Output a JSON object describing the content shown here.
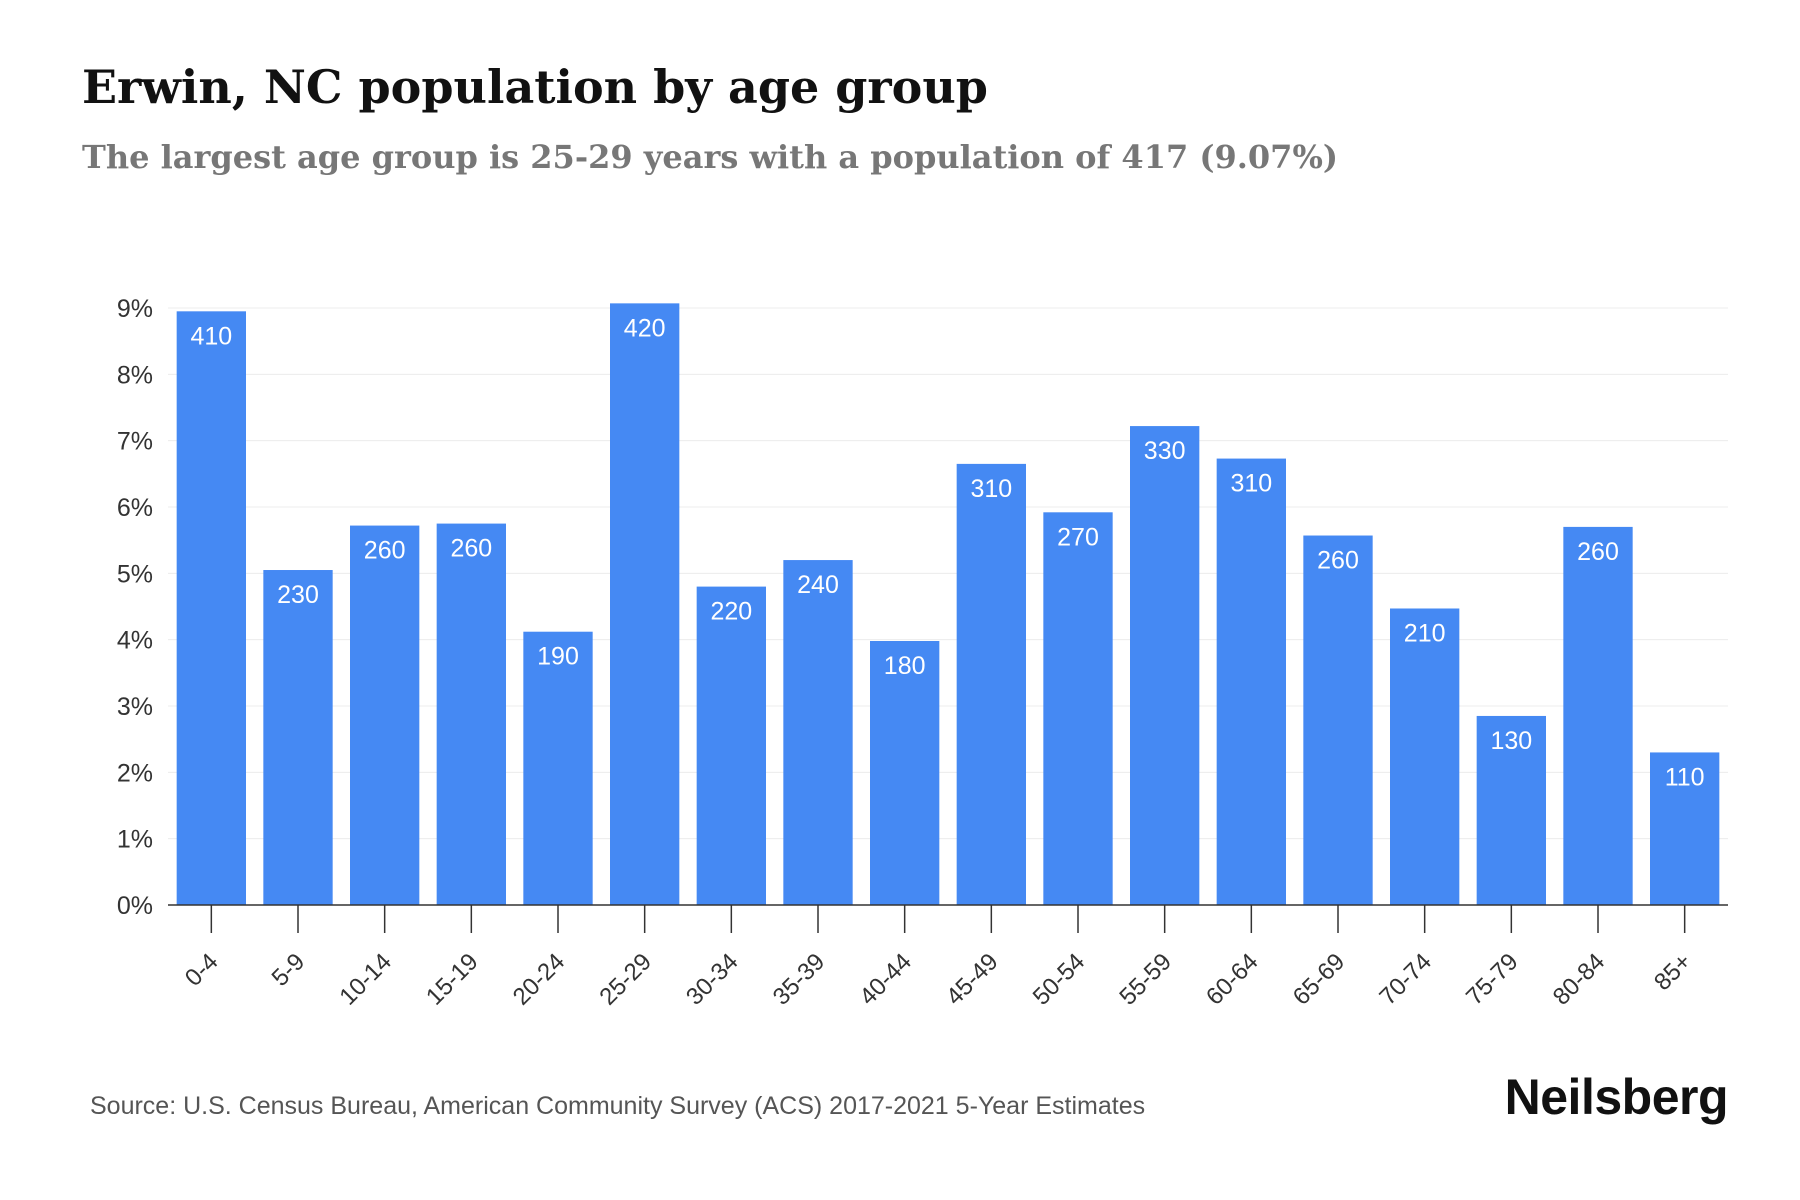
{
  "title": "Erwin, NC population by age group",
  "subtitle": "The largest age group is 25-29 years with a population of 417 (9.07%)",
  "source": "Source: U.S. Census Bureau, American Community Survey (ACS) 2017-2021 5-Year Estimates",
  "brand": "Neilsberg",
  "colors": {
    "bar": "#4589f3",
    "grid": "#ececec",
    "axis": "#333333",
    "text": "#333333",
    "label": "#ffffff"
  },
  "chart_data": {
    "type": "bar",
    "categories": [
      "0-4",
      "5-9",
      "10-14",
      "15-19",
      "20-24",
      "25-29",
      "30-34",
      "35-39",
      "40-44",
      "45-49",
      "50-54",
      "55-59",
      "60-64",
      "65-69",
      "70-74",
      "75-79",
      "80-84",
      "85+"
    ],
    "values": [
      8.95,
      5.05,
      5.72,
      5.75,
      4.12,
      9.07,
      4.8,
      5.2,
      3.98,
      6.65,
      5.92,
      7.22,
      6.73,
      5.57,
      4.47,
      2.85,
      5.7,
      2.3
    ],
    "data_labels": [
      "410",
      "230",
      "260",
      "260",
      "190",
      "420",
      "220",
      "240",
      "180",
      "310",
      "270",
      "330",
      "310",
      "260",
      "210",
      "130",
      "260",
      "110"
    ],
    "yticks": [
      "0%",
      "1%",
      "2%",
      "3%",
      "4%",
      "5%",
      "6%",
      "7%",
      "8%",
      "9%"
    ],
    "ylim": [
      0,
      9
    ],
    "grid": true
  }
}
